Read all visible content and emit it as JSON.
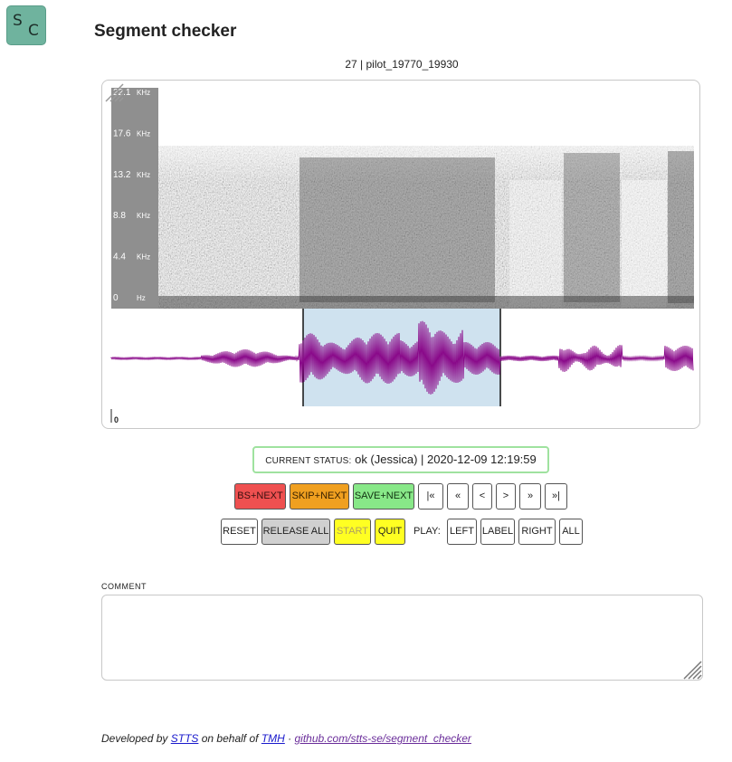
{
  "app": {
    "logo_s": "S",
    "logo_c": "C",
    "title": "Segment checker"
  },
  "segment": {
    "id_line": "27 | pilot_19770_19930",
    "freq_labels": [
      {
        "value": "22.1",
        "unit": "KHz"
      },
      {
        "value": "17.6",
        "unit": "KHz"
      },
      {
        "value": "13.2",
        "unit": "KHz"
      },
      {
        "value": "8.8",
        "unit": "KHz"
      },
      {
        "value": "4.4",
        "unit": "KHz"
      },
      {
        "value": "0",
        "unit": "Hz"
      }
    ],
    "time_zero": "0",
    "waveform_color": "#8a0a8a",
    "selection_color": "#cfe2ef"
  },
  "status": {
    "label": "Current status:",
    "value": "ok (Jessica) | 2020-12-09 12:19:59",
    "border_color": "#9fe29f"
  },
  "nav_buttons": {
    "bs_next": "BS+NEXT",
    "skip_next": "SKIP+NEXT",
    "save_next": "SAVE+NEXT",
    "first": "|«",
    "prev_fast": "«",
    "prev": "<",
    "next": ">",
    "next_fast": "»",
    "last": "»|"
  },
  "control_buttons": {
    "reset": "RESET",
    "release_all": "RELEASE ALL",
    "start": "START",
    "quit": "QUIT",
    "play_label": "PLAY:",
    "left": "LEFT",
    "label": "LABEL",
    "right": "RIGHT",
    "all": "ALL"
  },
  "comment": {
    "label": "COMMENT",
    "value": "",
    "placeholder": ""
  },
  "footer": {
    "prefix": "Developed by",
    "stts": "STTS",
    "middle": "on behalf of",
    "tmh": "TMH",
    "separator": "·",
    "repo": "github.com/stts-se/segment_checker"
  }
}
